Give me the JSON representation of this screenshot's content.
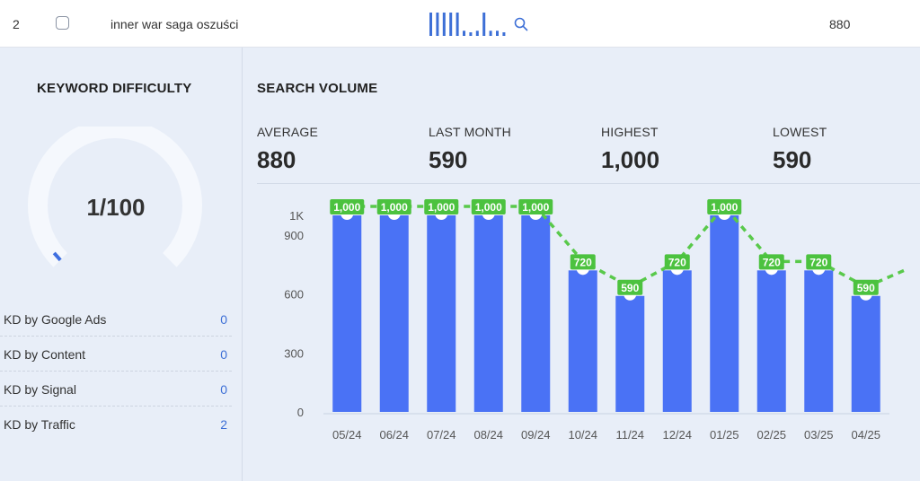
{
  "row": {
    "number": "2",
    "keyword": "inner war saga oszuści",
    "volume": "880",
    "trend_bars": [
      1000,
      1000,
      1000,
      1000,
      1000,
      720,
      590,
      720,
      1000,
      720,
      720,
      590
    ]
  },
  "keyword_difficulty": {
    "title": "KEYWORD DIFFICULTY",
    "value_label": "1/100",
    "value": 1,
    "max": 100,
    "items": [
      {
        "label": "KD by Google Ads",
        "value": "0"
      },
      {
        "label": "KD by Content",
        "value": "0"
      },
      {
        "label": "KD by Signal",
        "value": "0"
      },
      {
        "label": "KD by Traffic",
        "value": "2"
      }
    ]
  },
  "search_volume": {
    "title": "SEARCH VOLUME",
    "stats": [
      {
        "label": "AVERAGE",
        "value": "880"
      },
      {
        "label": "LAST MONTH",
        "value": "590"
      },
      {
        "label": "HIGHEST",
        "value": "1,000"
      },
      {
        "label": "LOWEST",
        "value": "590"
      }
    ]
  },
  "colors": {
    "bar": "#4a72f5",
    "line": "#59c94b",
    "label_bg": "#4cc23f",
    "gauge_track": "#f5f8fd",
    "gauge_fill": "#3f6fe0",
    "accent": "#3d6fd6"
  },
  "chart_data": {
    "type": "bar",
    "title": "SEARCH VOLUME",
    "categories": [
      "05/24",
      "06/24",
      "07/24",
      "08/24",
      "09/24",
      "10/24",
      "11/24",
      "12/24",
      "01/25",
      "02/25",
      "03/25",
      "04/25"
    ],
    "values": [
      1000,
      1000,
      1000,
      1000,
      1000,
      720,
      590,
      720,
      1000,
      720,
      720,
      590
    ],
    "value_labels": [
      "1,000",
      "1,000",
      "1,000",
      "1,000",
      "1,000",
      "720",
      "590",
      "720",
      "1,000",
      "720",
      "720",
      "590"
    ],
    "yticks": [
      0,
      300,
      600,
      900,
      1000
    ],
    "ytick_labels": [
      "0",
      "300",
      "600",
      "900",
      "1K"
    ],
    "ylim": [
      0,
      1000
    ],
    "xlabel": "",
    "ylabel": ""
  }
}
